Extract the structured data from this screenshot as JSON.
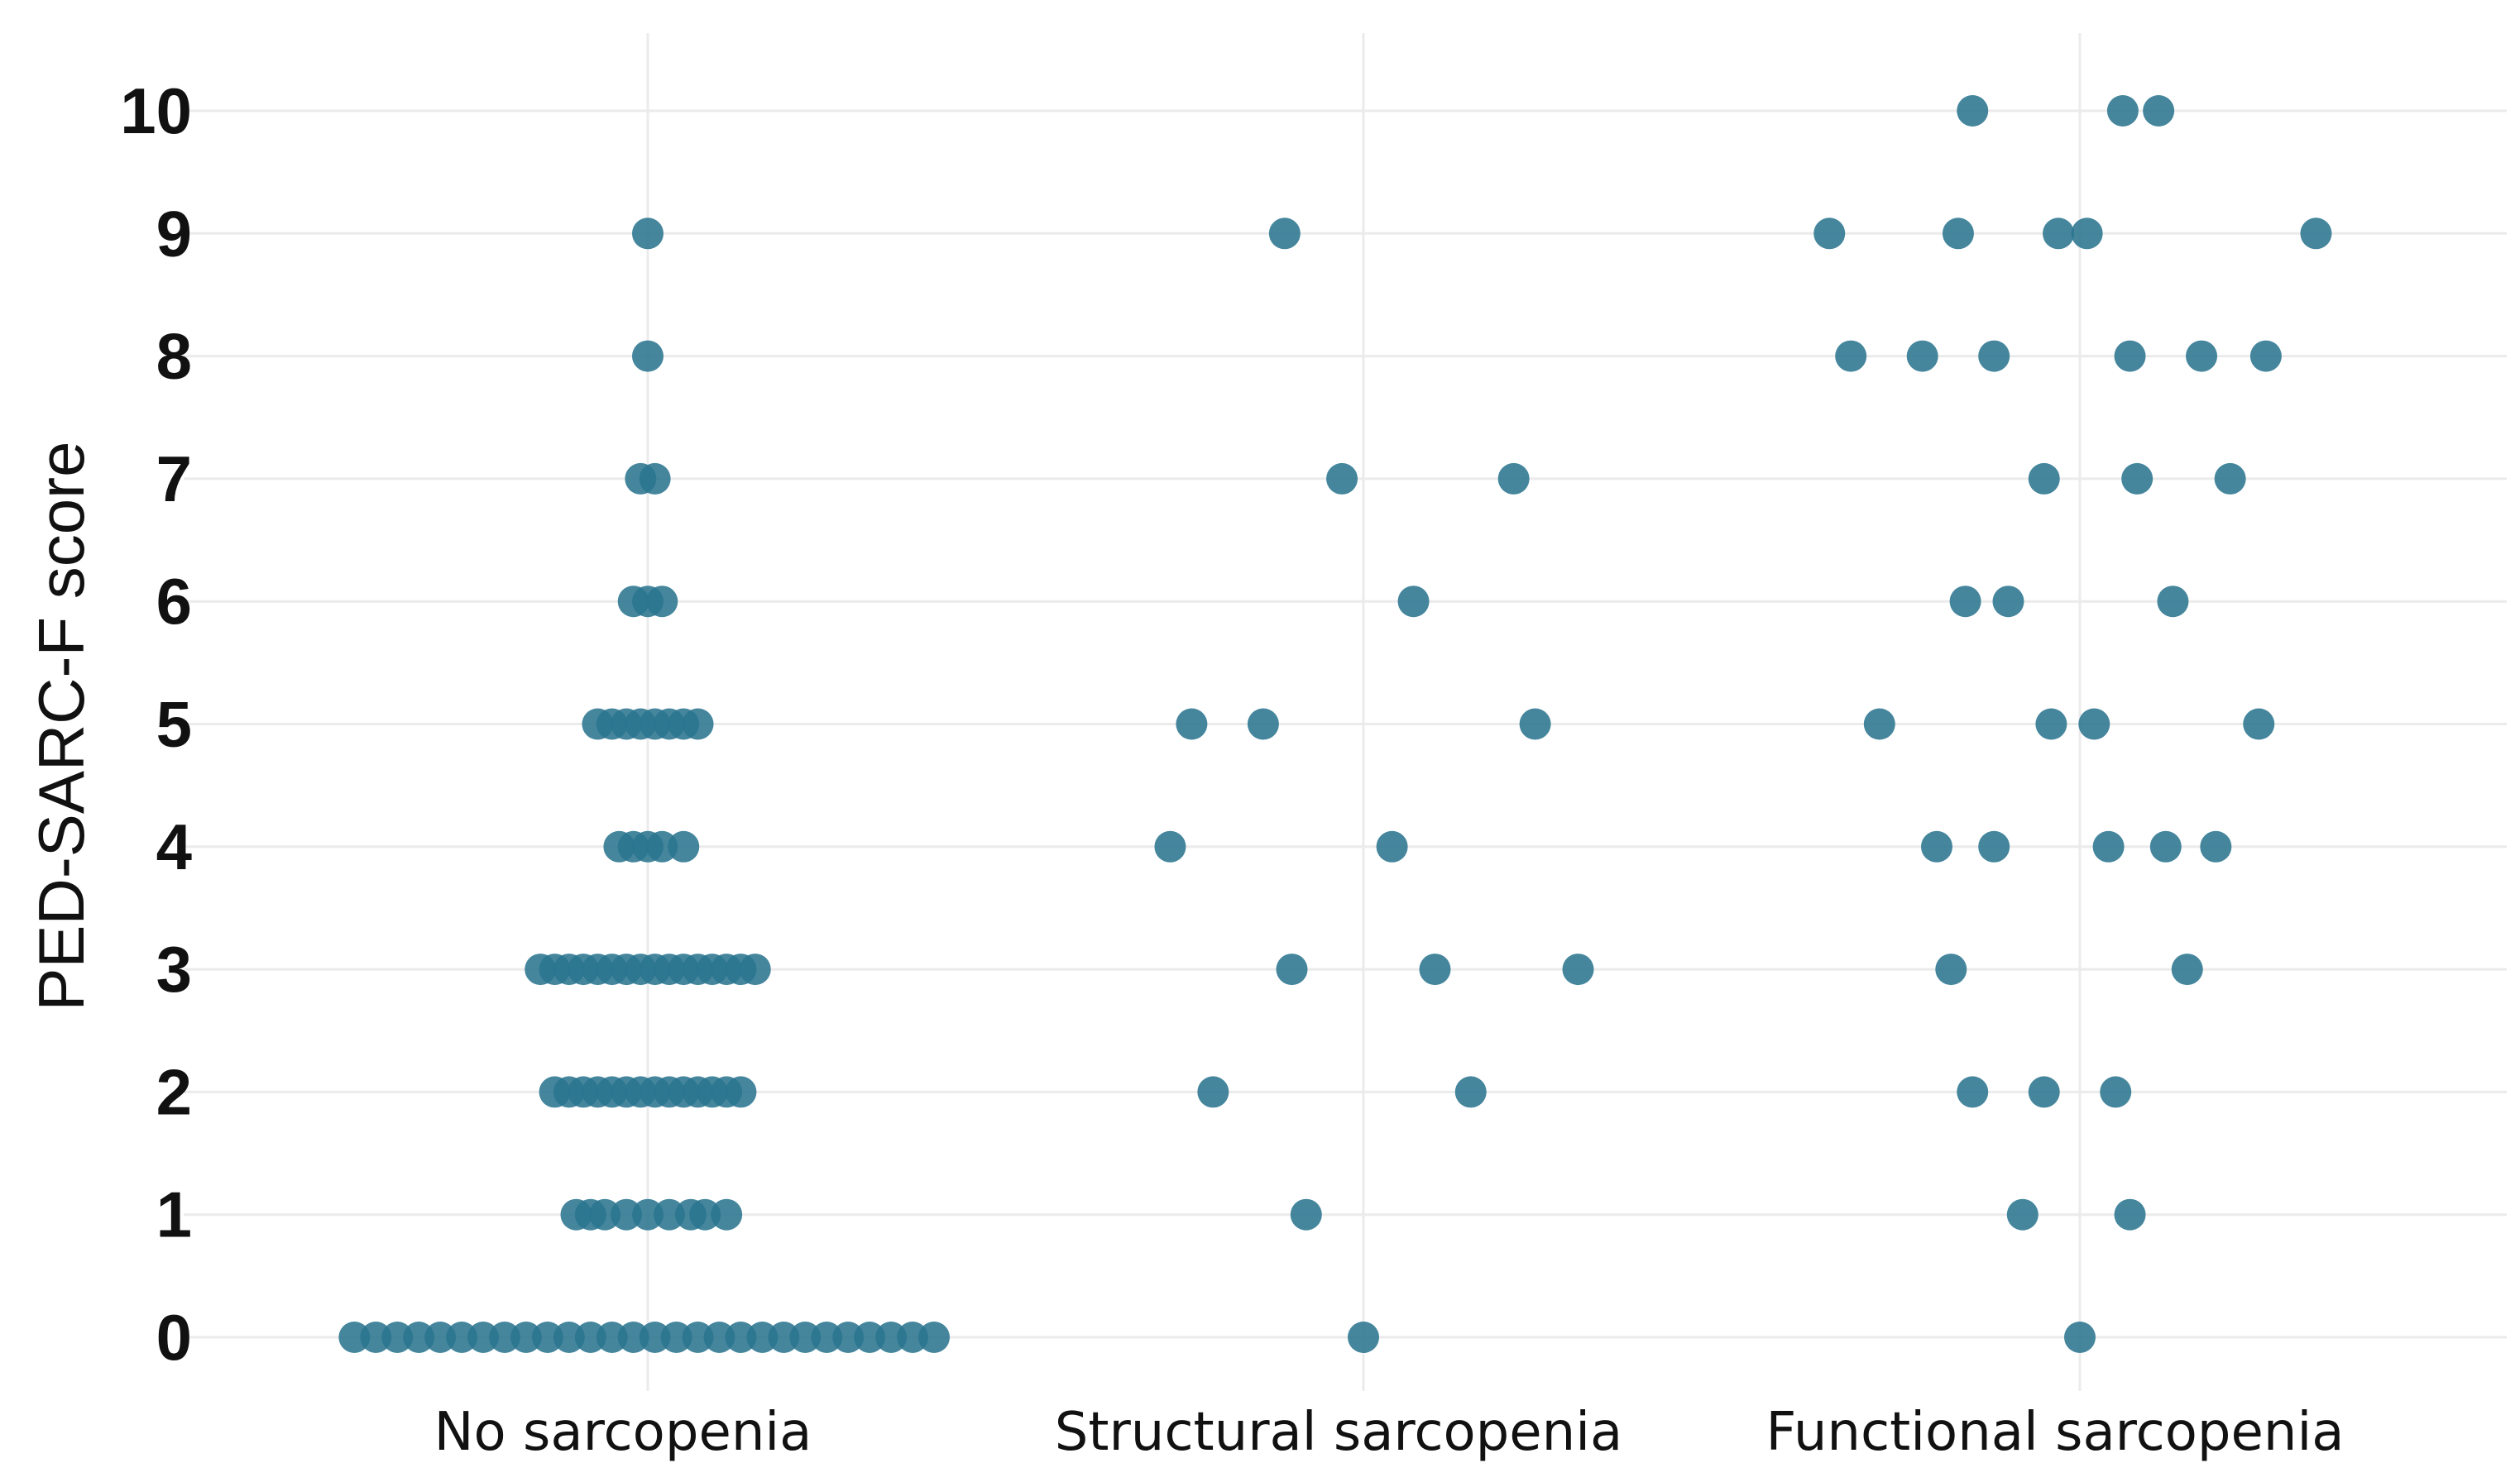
{
  "chart_data": {
    "type": "scatter",
    "title": "",
    "xlabel": "",
    "ylabel": "PED-SARC-F score",
    "categories": [
      "No sarcopenia",
      "Structural sarcopenia",
      "Functional sarcopenia"
    ],
    "y_ticks": [
      "0",
      "1",
      "2",
      "3",
      "4",
      "5",
      "6",
      "7",
      "8",
      "9",
      "10"
    ],
    "ylim": [
      -0.6,
      10.6
    ],
    "grid": true,
    "point_color": "#2b7590",
    "series": [
      {
        "name": "No sarcopenia",
        "note": "dense band, x = horizontal jitter in category units",
        "points": [
          {
            "x": -0.41,
            "y": 0
          },
          {
            "x": -0.38,
            "y": 0
          },
          {
            "x": -0.35,
            "y": 0
          },
          {
            "x": -0.32,
            "y": 0
          },
          {
            "x": -0.29,
            "y": 0
          },
          {
            "x": -0.26,
            "y": 0
          },
          {
            "x": -0.23,
            "y": 0
          },
          {
            "x": -0.2,
            "y": 0
          },
          {
            "x": -0.17,
            "y": 0
          },
          {
            "x": -0.14,
            "y": 0
          },
          {
            "x": -0.11,
            "y": 0
          },
          {
            "x": -0.08,
            "y": 0
          },
          {
            "x": -0.05,
            "y": 0
          },
          {
            "x": -0.02,
            "y": 0
          },
          {
            "x": 0.01,
            "y": 0
          },
          {
            "x": 0.04,
            "y": 0
          },
          {
            "x": 0.07,
            "y": 0
          },
          {
            "x": 0.1,
            "y": 0
          },
          {
            "x": 0.13,
            "y": 0
          },
          {
            "x": 0.16,
            "y": 0
          },
          {
            "x": 0.19,
            "y": 0
          },
          {
            "x": 0.22,
            "y": 0
          },
          {
            "x": 0.25,
            "y": 0
          },
          {
            "x": 0.28,
            "y": 0
          },
          {
            "x": 0.31,
            "y": 0
          },
          {
            "x": 0.34,
            "y": 0
          },
          {
            "x": 0.37,
            "y": 0
          },
          {
            "x": 0.4,
            "y": 0
          },
          {
            "x": -0.1,
            "y": 1
          },
          {
            "x": -0.08,
            "y": 1
          },
          {
            "x": -0.06,
            "y": 1
          },
          {
            "x": -0.03,
            "y": 1
          },
          {
            "x": 0.0,
            "y": 1
          },
          {
            "x": 0.03,
            "y": 1
          },
          {
            "x": 0.06,
            "y": 1
          },
          {
            "x": 0.08,
            "y": 1
          },
          {
            "x": 0.11,
            "y": 1
          },
          {
            "x": -0.13,
            "y": 2
          },
          {
            "x": -0.11,
            "y": 2
          },
          {
            "x": -0.09,
            "y": 2
          },
          {
            "x": -0.07,
            "y": 2
          },
          {
            "x": -0.05,
            "y": 2
          },
          {
            "x": -0.03,
            "y": 2
          },
          {
            "x": -0.01,
            "y": 2
          },
          {
            "x": 0.01,
            "y": 2
          },
          {
            "x": 0.03,
            "y": 2
          },
          {
            "x": 0.05,
            "y": 2
          },
          {
            "x": 0.07,
            "y": 2
          },
          {
            "x": 0.09,
            "y": 2
          },
          {
            "x": 0.11,
            "y": 2
          },
          {
            "x": 0.13,
            "y": 2
          },
          {
            "x": -0.15,
            "y": 3
          },
          {
            "x": -0.13,
            "y": 3
          },
          {
            "x": -0.11,
            "y": 3
          },
          {
            "x": -0.09,
            "y": 3
          },
          {
            "x": -0.07,
            "y": 3
          },
          {
            "x": -0.05,
            "y": 3
          },
          {
            "x": -0.03,
            "y": 3
          },
          {
            "x": -0.01,
            "y": 3
          },
          {
            "x": 0.01,
            "y": 3
          },
          {
            "x": 0.03,
            "y": 3
          },
          {
            "x": 0.05,
            "y": 3
          },
          {
            "x": 0.07,
            "y": 3
          },
          {
            "x": 0.09,
            "y": 3
          },
          {
            "x": 0.11,
            "y": 3
          },
          {
            "x": 0.13,
            "y": 3
          },
          {
            "x": 0.15,
            "y": 3
          },
          {
            "x": -0.04,
            "y": 4
          },
          {
            "x": -0.02,
            "y": 4
          },
          {
            "x": 0.0,
            "y": 4
          },
          {
            "x": 0.02,
            "y": 4
          },
          {
            "x": 0.05,
            "y": 4
          },
          {
            "x": -0.07,
            "y": 5
          },
          {
            "x": -0.05,
            "y": 5
          },
          {
            "x": -0.03,
            "y": 5
          },
          {
            "x": -0.01,
            "y": 5
          },
          {
            "x": 0.01,
            "y": 5
          },
          {
            "x": 0.03,
            "y": 5
          },
          {
            "x": 0.05,
            "y": 5
          },
          {
            "x": 0.07,
            "y": 5
          },
          {
            "x": -0.02,
            "y": 6
          },
          {
            "x": 0.0,
            "y": 6
          },
          {
            "x": 0.02,
            "y": 6
          },
          {
            "x": -0.01,
            "y": 7
          },
          {
            "x": 0.01,
            "y": 7
          },
          {
            "x": 0.0,
            "y": 8
          },
          {
            "x": 0.0,
            "y": 9
          }
        ]
      },
      {
        "name": "Structural sarcopenia",
        "points": [
          {
            "x": 0.0,
            "y": 0
          },
          {
            "x": -0.08,
            "y": 1
          },
          {
            "x": -0.21,
            "y": 2
          },
          {
            "x": 0.15,
            "y": 2
          },
          {
            "x": -0.1,
            "y": 3
          },
          {
            "x": 0.1,
            "y": 3
          },
          {
            "x": 0.3,
            "y": 3
          },
          {
            "x": -0.27,
            "y": 4
          },
          {
            "x": 0.04,
            "y": 4
          },
          {
            "x": -0.24,
            "y": 5
          },
          {
            "x": -0.14,
            "y": 5
          },
          {
            "x": 0.24,
            "y": 5
          },
          {
            "x": 0.07,
            "y": 6
          },
          {
            "x": -0.03,
            "y": 7
          },
          {
            "x": 0.21,
            "y": 7
          },
          {
            "x": -0.11,
            "y": 9
          }
        ]
      },
      {
        "name": "Functional sarcopenia",
        "points": [
          {
            "x": 0.0,
            "y": 0
          },
          {
            "x": -0.08,
            "y": 1
          },
          {
            "x": 0.07,
            "y": 1
          },
          {
            "x": -0.15,
            "y": 2
          },
          {
            "x": -0.05,
            "y": 2
          },
          {
            "x": 0.05,
            "y": 2
          },
          {
            "x": -0.18,
            "y": 3
          },
          {
            "x": 0.15,
            "y": 3
          },
          {
            "x": -0.2,
            "y": 4
          },
          {
            "x": -0.12,
            "y": 4
          },
          {
            "x": 0.04,
            "y": 4
          },
          {
            "x": 0.12,
            "y": 4
          },
          {
            "x": 0.19,
            "y": 4
          },
          {
            "x": -0.28,
            "y": 5
          },
          {
            "x": -0.04,
            "y": 5
          },
          {
            "x": 0.02,
            "y": 5
          },
          {
            "x": 0.25,
            "y": 5
          },
          {
            "x": -0.16,
            "y": 6
          },
          {
            "x": -0.1,
            "y": 6
          },
          {
            "x": 0.13,
            "y": 6
          },
          {
            "x": -0.05,
            "y": 7
          },
          {
            "x": 0.08,
            "y": 7
          },
          {
            "x": 0.21,
            "y": 7
          },
          {
            "x": -0.32,
            "y": 8
          },
          {
            "x": -0.22,
            "y": 8
          },
          {
            "x": -0.12,
            "y": 8
          },
          {
            "x": 0.07,
            "y": 8
          },
          {
            "x": 0.17,
            "y": 8
          },
          {
            "x": 0.26,
            "y": 8
          },
          {
            "x": -0.35,
            "y": 9
          },
          {
            "x": -0.17,
            "y": 9
          },
          {
            "x": -0.03,
            "y": 9
          },
          {
            "x": 0.01,
            "y": 9
          },
          {
            "x": 0.33,
            "y": 9
          },
          {
            "x": -0.15,
            "y": 10
          },
          {
            "x": 0.06,
            "y": 10
          },
          {
            "x": 0.11,
            "y": 10
          }
        ]
      }
    ]
  }
}
